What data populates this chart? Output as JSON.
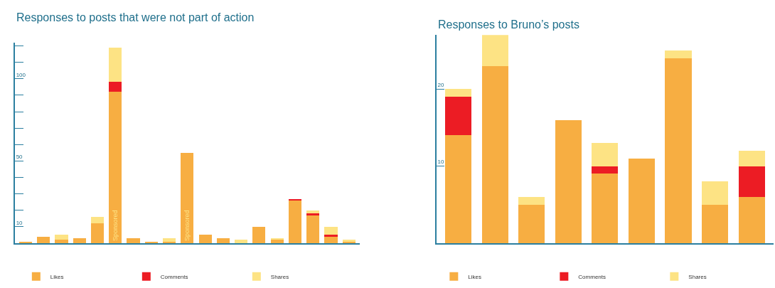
{
  "chart_data": [
    {
      "type": "bar",
      "title": "Responses to posts that were not part of action",
      "stacked": true,
      "categories": [
        null,
        null,
        null,
        null,
        null,
        null,
        null,
        null,
        null,
        null,
        null,
        null,
        null,
        null,
        null,
        null,
        null,
        null,
        null
      ],
      "series": [
        {
          "name": "Likes",
          "color": "#f7ae42",
          "values": [
            1,
            4,
            2,
            3,
            12,
            92,
            3,
            1,
            1,
            55,
            5,
            3,
            0,
            10,
            2,
            26,
            17,
            4,
            1
          ],
          "value_labels": [
            null,
            null,
            null,
            null,
            null,
            "Sponsored",
            null,
            null,
            null,
            "Sponsored",
            null,
            null,
            null,
            null,
            null,
            null,
            null,
            null,
            null
          ]
        },
        {
          "name": "Comments",
          "color": "#ec1c24",
          "values": [
            0,
            0,
            0,
            0,
            0,
            6,
            0,
            0,
            0,
            0,
            0,
            0,
            0,
            0,
            0,
            1,
            1,
            1,
            0
          ]
        },
        {
          "name": "Shares",
          "color": "#fde384",
          "values": [
            0,
            0,
            3,
            0,
            4,
            21,
            0,
            0,
            2,
            0,
            0,
            0,
            2,
            0,
            1,
            0,
            2,
            5,
            1
          ]
        }
      ],
      "ylim": [
        0,
        122
      ],
      "yticks": [
        {
          "value": 10,
          "label": "10"
        },
        {
          "value": 20,
          "label": null
        },
        {
          "value": 30,
          "label": null
        },
        {
          "value": 40,
          "label": null
        },
        {
          "value": 50,
          "label": "50"
        },
        {
          "value": 60,
          "label": null
        },
        {
          "value": 70,
          "label": null
        },
        {
          "value": 80,
          "label": null
        },
        {
          "value": 90,
          "label": null
        },
        {
          "value": 100,
          "label": "100"
        },
        {
          "value": 110,
          "label": null
        },
        {
          "value": 120,
          "label": null
        }
      ],
      "tick_labels": "y",
      "legend": "bottom"
    },
    {
      "type": "bar",
      "title": "Responses to Bruno’s posts",
      "stacked": true,
      "categories": [
        null,
        null,
        null,
        null,
        null,
        null,
        null,
        null,
        null
      ],
      "series": [
        {
          "name": "Likes",
          "color": "#f7ae42",
          "values": [
            14,
            23,
            5,
            16,
            9,
            11,
            24,
            5,
            6
          ]
        },
        {
          "name": "Comments",
          "color": "#ec1c24",
          "values": [
            5,
            0,
            0,
            0,
            1,
            0,
            0,
            0,
            4
          ]
        },
        {
          "name": "Shares",
          "color": "#fde384",
          "values": [
            1,
            4,
            1,
            0,
            3,
            0,
            1,
            3,
            2
          ]
        }
      ],
      "ylim": [
        0,
        27
      ],
      "yticks": [
        10,
        20
      ],
      "tick_labels": "y",
      "legend": "bottom"
    }
  ]
}
